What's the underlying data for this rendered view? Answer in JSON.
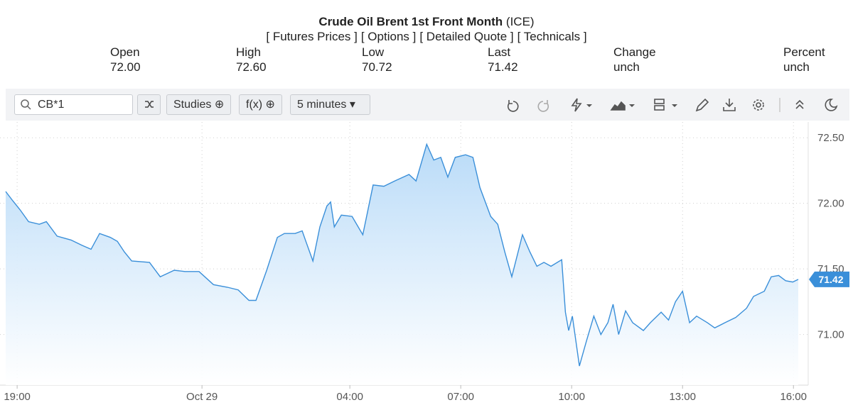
{
  "header": {
    "title": "Crude Oil Brent 1st Front Month",
    "exchange": "(ICE)",
    "links": [
      "[ Futures Prices ]",
      "[ Options ]",
      "[ Detailed Quote ]",
      "[ Technicals ]"
    ]
  },
  "quote": [
    {
      "label": "Open",
      "value": "72.00"
    },
    {
      "label": "High",
      "value": "72.60"
    },
    {
      "label": "Low",
      "value": "70.72"
    },
    {
      "label": "Last",
      "value": "71.42"
    },
    {
      "label": "Change",
      "value": "unch"
    },
    {
      "label": "Percent",
      "value": "unch"
    }
  ],
  "toolbar": {
    "symbol": "CB*1",
    "studies": "Studies",
    "function": "f(x)",
    "interval": "5 minutes"
  },
  "chart_data": {
    "type": "area",
    "color": "#3a8fd9",
    "grid": true,
    "x": [
      18.69,
      18.88,
      19.08,
      19.31,
      19.6,
      19.79,
      20.08,
      20.46,
      20.75,
      21.0,
      21.23,
      21.52,
      21.71,
      21.9,
      22.1,
      22.58,
      22.87,
      23.25,
      23.54,
      23.92,
      24.31,
      24.69,
      24.98,
      25.27,
      25.46,
      25.75,
      26.04,
      26.23,
      26.52,
      26.71,
      26.81,
      27.0,
      27.19,
      27.38,
      27.48,
      27.58,
      27.77,
      28.06,
      28.35,
      28.63,
      28.92,
      29.21,
      29.6,
      29.79,
      30.08,
      30.27,
      30.46,
      30.65,
      30.85,
      31.13,
      31.33,
      31.52,
      31.81,
      32.0,
      32.19,
      32.38,
      32.67,
      32.87,
      33.06,
      33.25,
      33.44,
      33.73,
      33.83,
      33.92,
      34.02,
      34.21,
      34.4,
      34.6,
      34.79,
      34.98,
      35.12,
      35.27,
      35.46,
      35.65,
      35.94,
      36.13,
      36.42,
      36.62,
      36.81,
      37.0,
      37.19,
      37.38,
      37.67,
      37.87,
      38.15,
      38.44,
      38.73,
      38.92,
      39.21,
      39.4,
      39.6,
      39.79,
      39.98,
      40.13
    ],
    "values": [
      72.09,
      72.02,
      71.95,
      71.86,
      71.84,
      71.86,
      71.75,
      71.72,
      71.68,
      71.65,
      71.77,
      71.74,
      71.71,
      71.63,
      71.56,
      71.55,
      71.44,
      71.49,
      71.48,
      71.48,
      71.38,
      71.36,
      71.34,
      71.26,
      71.26,
      71.49,
      71.74,
      71.77,
      71.77,
      71.79,
      71.71,
      71.56,
      71.82,
      71.98,
      72.01,
      71.82,
      71.91,
      71.9,
      71.76,
      72.14,
      72.13,
      72.17,
      72.22,
      72.17,
      72.45,
      72.33,
      72.35,
      72.2,
      72.35,
      72.37,
      72.35,
      72.12,
      71.9,
      71.84,
      71.63,
      71.44,
      71.76,
      71.63,
      71.52,
      71.55,
      71.52,
      71.57,
      71.17,
      71.03,
      71.14,
      70.76,
      70.95,
      71.14,
      71.0,
      71.09,
      71.23,
      71.0,
      71.18,
      71.09,
      71.03,
      71.09,
      71.17,
      71.11,
      71.25,
      71.33,
      71.09,
      71.14,
      71.09,
      71.05,
      71.09,
      71.13,
      71.2,
      71.29,
      71.33,
      71.44,
      71.45,
      71.41,
      71.4,
      71.42
    ],
    "xlim": [
      18.69,
      40.38
    ],
    "ylim": [
      70.63,
      72.62
    ],
    "xticks": [
      {
        "value": 19,
        "label": "19:00"
      },
      {
        "value": 24,
        "label": "Oct 29"
      },
      {
        "value": 28,
        "label": "04:00"
      },
      {
        "value": 31,
        "label": "07:00"
      },
      {
        "value": 34,
        "label": "10:00"
      },
      {
        "value": 37,
        "label": "13:00"
      },
      {
        "value": 40,
        "label": "16:00"
      }
    ],
    "yticks": [
      {
        "value": 71,
        "label": "71.00"
      },
      {
        "value": 71.5,
        "label": "71.50"
      },
      {
        "value": 72,
        "label": "72.00"
      },
      {
        "value": 72.5,
        "label": "72.50"
      }
    ]
  }
}
